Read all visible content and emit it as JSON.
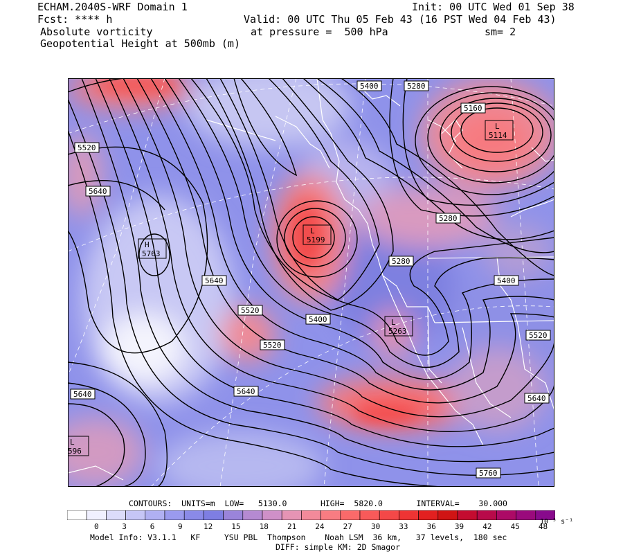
{
  "header": {
    "model": "ECHAM.2040S-WRF Domain 1",
    "fcst": "Fcst: **** h",
    "field1": "Absolute vorticity",
    "field2": "Geopotential Height at 500mb (m)",
    "init": "Init: 00 UTC Wed 01 Sep 38",
    "valid": "Valid: 00 UTC Thu 05 Feb 43 (16 PST Wed 04 Feb 43)",
    "pressure": "at pressure =  500 hPa",
    "smoothing": "sm= 2"
  },
  "contours": {
    "units_label": "CONTOURS:  UNITS=m  LOW=   5130.0       HIGH=  5820.0       INTERVAL=    30.000",
    "units": "m",
    "low": 5130.0,
    "high": 5820.0,
    "interval": 30.0
  },
  "map_labels": [
    {
      "id": "l-5400-top",
      "text": "5400"
    },
    {
      "id": "l-5280-top",
      "text": "5280"
    },
    {
      "id": "l-5160",
      "text": "5160"
    },
    {
      "id": "l-5520-left",
      "text": "5520"
    },
    {
      "id": "l-5640-left",
      "text": "5640"
    },
    {
      "id": "l-5280-mid",
      "text": "5280"
    },
    {
      "id": "l-5280-coast",
      "text": "5280"
    },
    {
      "id": "l-5400-right",
      "text": "5400"
    },
    {
      "id": "l-5640-center",
      "text": "5640"
    },
    {
      "id": "l-5520-center",
      "text": "5520"
    },
    {
      "id": "l-5400-center",
      "text": "5400"
    },
    {
      "id": "l-5520-lower",
      "text": "5520"
    },
    {
      "id": "l-5520-right",
      "text": "5520"
    },
    {
      "id": "l-5640-lower",
      "text": "5640"
    },
    {
      "id": "l-5640-lowleft",
      "text": "5640"
    },
    {
      "id": "l-5640-lowright",
      "text": "5640"
    },
    {
      "id": "l-5760",
      "text": "5760"
    }
  ],
  "centers": [
    {
      "id": "low-ne",
      "type": "L",
      "value": "5114"
    },
    {
      "id": "low-coast",
      "type": "L",
      "value": "5199"
    },
    {
      "id": "high-w",
      "type": "H",
      "value": "5763"
    },
    {
      "id": "low-sw",
      "type": "L",
      "value": "5263"
    },
    {
      "id": "low-bl",
      "type": "L",
      "value": "596"
    }
  ],
  "colorbar": {
    "ticks": [
      "0",
      "3",
      "6",
      "9",
      "12",
      "15",
      "18",
      "21",
      "24",
      "27",
      "30",
      "33",
      "36",
      "39",
      "42",
      "45",
      "48"
    ],
    "units": "10⁻⁵ s⁻¹",
    "colors": [
      "#ffffff",
      "#f0f0ff",
      "#dcdcfa",
      "#c6c6f6",
      "#b0b0f2",
      "#9a9aee",
      "#8a8ae8",
      "#7e7ee2",
      "#9a84da",
      "#b58ad2",
      "#cf90c8",
      "#e594b4",
      "#f28a9a",
      "#f87c82",
      "#fa6a6a",
      "#f85a5a",
      "#f44848",
      "#ee3434",
      "#e22020",
      "#d01414",
      "#c40c30",
      "#b80a4a",
      "#ac0a66",
      "#9a0a7c",
      "#880a8c"
    ]
  },
  "footer": {
    "model_info": "Model Info: V3.1.1   KF     YSU PBL  Thompson    Noah LSM  36 km,   37 levels,  180 sec",
    "diff": "DIFF: simple KM: 2D Smagor"
  }
}
